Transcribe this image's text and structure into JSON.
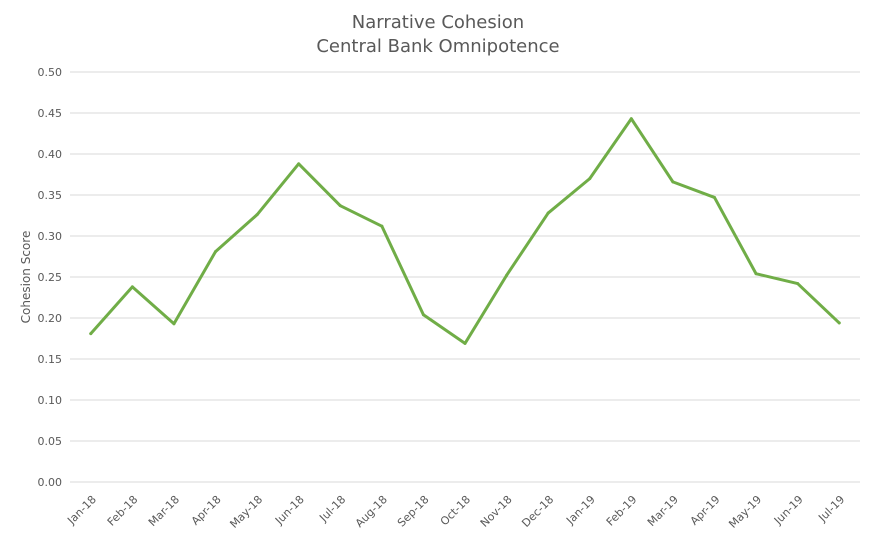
{
  "colors": {
    "series": "#70ad47",
    "grid": "#d9d9d9",
    "text": "#595959"
  },
  "chart_data": {
    "type": "line",
    "title_lines": [
      "Narrative Cohesion",
      "Central Bank Omnipotence"
    ],
    "xlabel": "",
    "ylabel": "Cohesion Score",
    "ylim": [
      0,
      0.5
    ],
    "yticks": [
      "0.00",
      "0.05",
      "0.10",
      "0.15",
      "0.20",
      "0.25",
      "0.30",
      "0.35",
      "0.40",
      "0.45",
      "0.50"
    ],
    "grid": true,
    "legend": "none",
    "categories": [
      "Jan-18",
      "Feb-18",
      "Mar-18",
      "Apr-18",
      "May-18",
      "Jun-18",
      "Jul-18",
      "Aug-18",
      "Sep-18",
      "Oct-18",
      "Nov-18",
      "Dec-18",
      "Jan-19",
      "Feb-19",
      "Mar-19",
      "Apr-19",
      "May-19",
      "Jun-19",
      "Jul-19"
    ],
    "series": [
      {
        "values": [
          0.181,
          0.238,
          0.193,
          0.281,
          0.326,
          0.388,
          0.337,
          0.312,
          0.204,
          0.169,
          0.252,
          0.328,
          0.37,
          0.443,
          0.366,
          0.347,
          0.254,
          0.242,
          0.194
        ]
      }
    ]
  }
}
